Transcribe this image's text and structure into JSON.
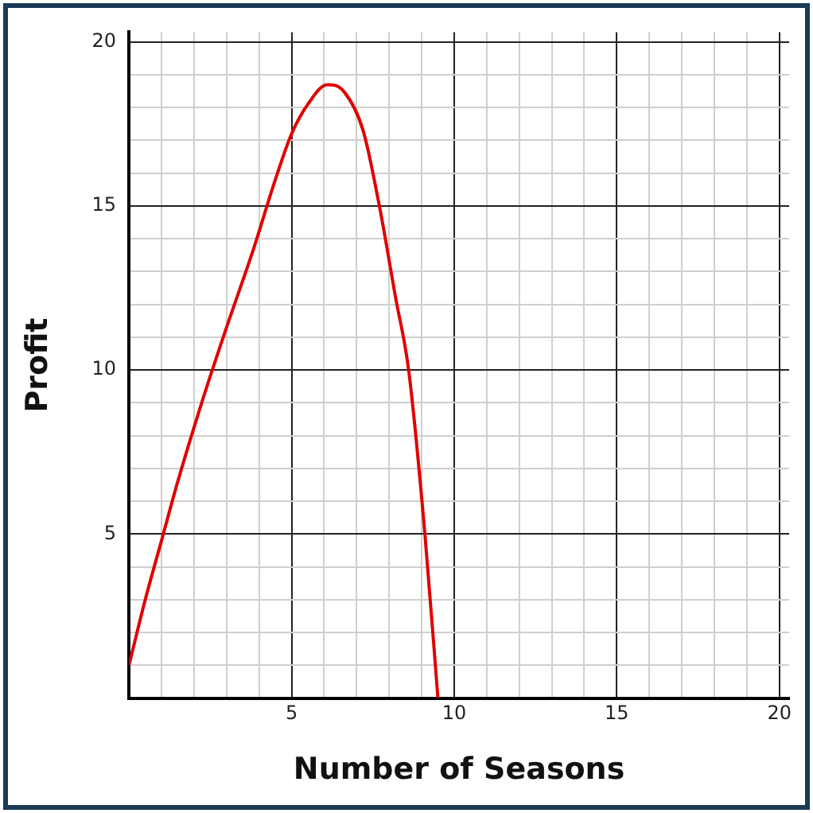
{
  "chart_data": {
    "type": "line",
    "xlabel": "Number of Seasons",
    "ylabel": "Profit",
    "x": [
      0,
      0.5,
      1,
      1.5,
      2.3,
      3,
      3.8,
      4.5,
      5,
      5.5,
      6.1,
      6.6,
      7.2,
      7.7,
      8.2,
      8.6,
      9.1,
      9.5
    ],
    "series": [
      {
        "color": "#e00000",
        "values": [
          1,
          3,
          4.8,
          6.6,
          9.2,
          11.3,
          13.6,
          15.8,
          17.2,
          18.1,
          18.7,
          18.5,
          17.3,
          15,
          12.2,
          10,
          5,
          0
        ]
      }
    ],
    "xlim": [
      0,
      20.3
    ],
    "ylim": [
      0,
      20.3
    ],
    "xticks": [
      {
        "value": 1,
        "label": null
      },
      {
        "value": 2,
        "label": null
      },
      {
        "value": 3,
        "label": null
      },
      {
        "value": 4,
        "label": null
      },
      5,
      {
        "value": 6,
        "label": null
      },
      {
        "value": 7,
        "label": null
      },
      {
        "value": 8,
        "label": null
      },
      {
        "value": 9,
        "label": null
      },
      10,
      {
        "value": 11,
        "label": null
      },
      {
        "value": 12,
        "label": null
      },
      {
        "value": 13,
        "label": null
      },
      {
        "value": 14,
        "label": null
      },
      15,
      {
        "value": 16,
        "label": null
      },
      {
        "value": 17,
        "label": null
      },
      {
        "value": 18,
        "label": null
      },
      {
        "value": 19,
        "label": null
      },
      20
    ],
    "yticks": [
      {
        "value": 1,
        "label": null
      },
      {
        "value": 2,
        "label": null
      },
      {
        "value": 3,
        "label": null
      },
      {
        "value": 4,
        "label": null
      },
      5,
      {
        "value": 6,
        "label": null
      },
      {
        "value": 7,
        "label": null
      },
      {
        "value": 8,
        "label": null
      },
      {
        "value": 9,
        "label": null
      },
      10,
      {
        "value": 11,
        "label": null
      },
      {
        "value": 12,
        "label": null
      },
      {
        "value": 13,
        "label": null
      },
      {
        "value": 14,
        "label": null
      },
      15,
      {
        "value": 16,
        "label": null
      },
      {
        "value": 17,
        "label": null
      },
      {
        "value": 18,
        "label": null
      },
      {
        "value": 19,
        "label": null
      },
      20
    ],
    "grid": true,
    "marker": "none",
    "line_style": "solid"
  }
}
